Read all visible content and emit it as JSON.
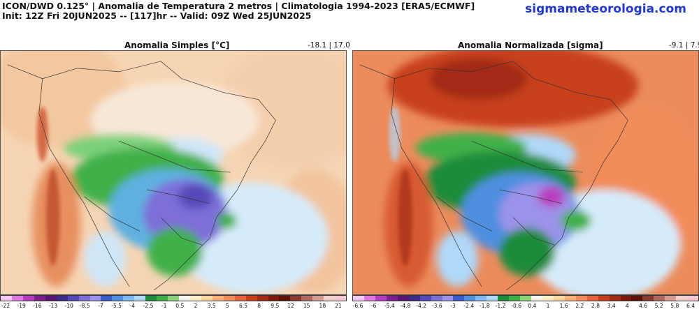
{
  "header": {
    "line1": "ICON/DWD 0.125° | Anomalia de Temperatura 2 metros | Climatologia 1994-2023 [ERA5/ECMWF]",
    "line2": "Init: 12Z Fri 20JUN2025 -- [117]hr -- Valid: 09Z Wed 25JUN2025",
    "site": "sigmameteorologia.com"
  },
  "left_panel": {
    "title": "Anomalia Simples [°C]",
    "range": "-18.1 | 17.0",
    "colorbar_ticks": [
      "-22",
      "-19",
      "-16",
      "-13",
      "-10",
      "-8.5",
      "-7",
      "-5.5",
      "-4",
      "-2.5",
      "-1",
      "0.5",
      "2",
      "3.5",
      "5",
      "6.5",
      "8",
      "9.5",
      "12",
      "15",
      "18",
      "21"
    ]
  },
  "right_panel": {
    "title": "Anomalia Normalizada [sigma]",
    "range": "-9.1 | 7.9",
    "colorbar_ticks": [
      "-6.6",
      "-6",
      "-5.4",
      "-4.8",
      "-4.2",
      "-3.6",
      "-3",
      "-2.4",
      "-1.8",
      "-1.2",
      "-0.6",
      "0.4",
      "1",
      "1.6",
      "2.2",
      "2.8",
      "3.4",
      "4",
      "4.6",
      "5.2",
      "5.8",
      "6.4"
    ]
  },
  "colorbar_colors": [
    "#f7c8f5",
    "#e07ae0",
    "#b93dc0",
    "#7e1f8e",
    "#5a1472",
    "#3d2a86",
    "#5548b8",
    "#7d6ed8",
    "#9b92ea",
    "#3a59c8",
    "#4f8fe0",
    "#7fb8f0",
    "#b0d8f8",
    "#1c8c3a",
    "#3fb048",
    "#8cd27a",
    "#f5f5f0",
    "#fdeec6",
    "#fcd4a0",
    "#f9b27c",
    "#f28c5a",
    "#e4623c",
    "#c8401e",
    "#a22a12",
    "#7e1a0a",
    "#5c1208",
    "#8a3a30",
    "#b06860",
    "#d49a94",
    "#f2d0cc",
    "#f7c7cf"
  ]
}
